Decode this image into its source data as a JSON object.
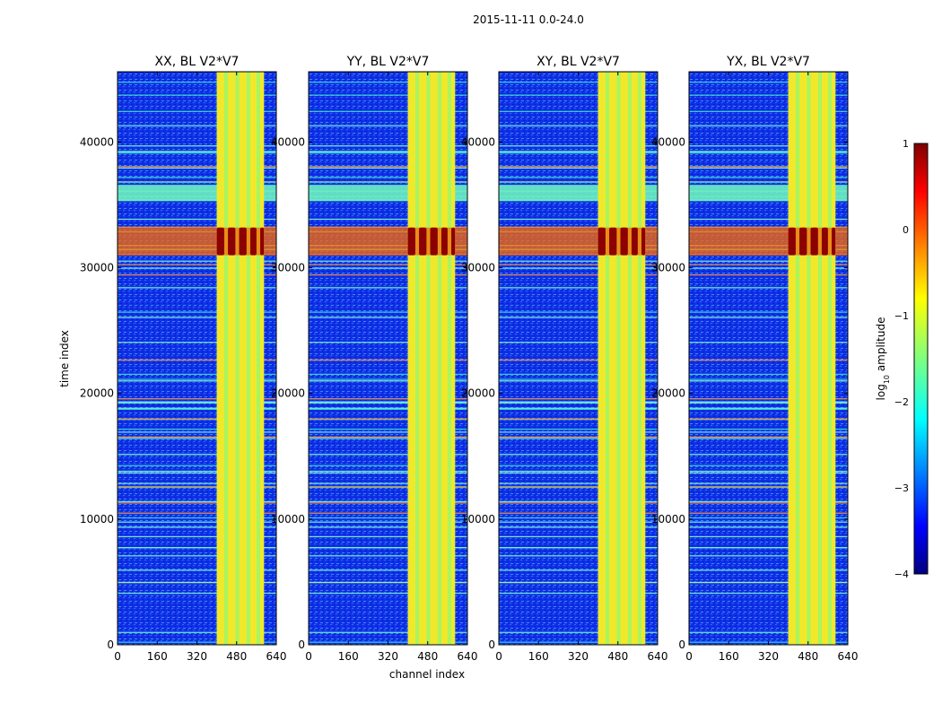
{
  "chart_data": {
    "type": "heatmap",
    "suptitle": "2015-11-11 0.0-24.0",
    "xlabel": "channel index",
    "ylabel": "time index",
    "xlim": [
      0,
      640
    ],
    "ylim": [
      0,
      45600
    ],
    "xticks": [
      0,
      160,
      320,
      480,
      640
    ],
    "yticks": [
      0,
      10000,
      20000,
      30000,
      40000
    ],
    "xtick_labels": [
      "0",
      "160",
      "320",
      "480",
      "640"
    ],
    "ytick_labels": [
      "0",
      "10000",
      "20000",
      "30000",
      "40000"
    ],
    "panels": [
      {
        "title": "XX, BL V2*V7"
      },
      {
        "title": "YY, BL V2*V7"
      },
      {
        "title": "XY, BL V2*V7"
      },
      {
        "title": "YX, BL V2*V7"
      }
    ],
    "colorbar": {
      "label_prefix": "log",
      "label_sub": "10",
      "label_suffix": " amplitude",
      "range": [
        -4,
        1
      ],
      "ticks": [
        1,
        0,
        -1,
        -2,
        -3,
        -4
      ],
      "tick_labels": [
        "1",
        "0",
        "−1",
        "−2",
        "−3",
        "−4"
      ],
      "colormap": "jet"
    },
    "features": {
      "bright_channel_range": [
        400,
        590
      ],
      "bright_channel_columns": [
        400,
        430,
        445,
        475,
        490,
        520,
        535,
        560,
        575,
        590
      ],
      "strong_burst_time_range": [
        31000,
        33200
      ],
      "flagged_time_band": [
        35300,
        36600
      ]
    }
  }
}
